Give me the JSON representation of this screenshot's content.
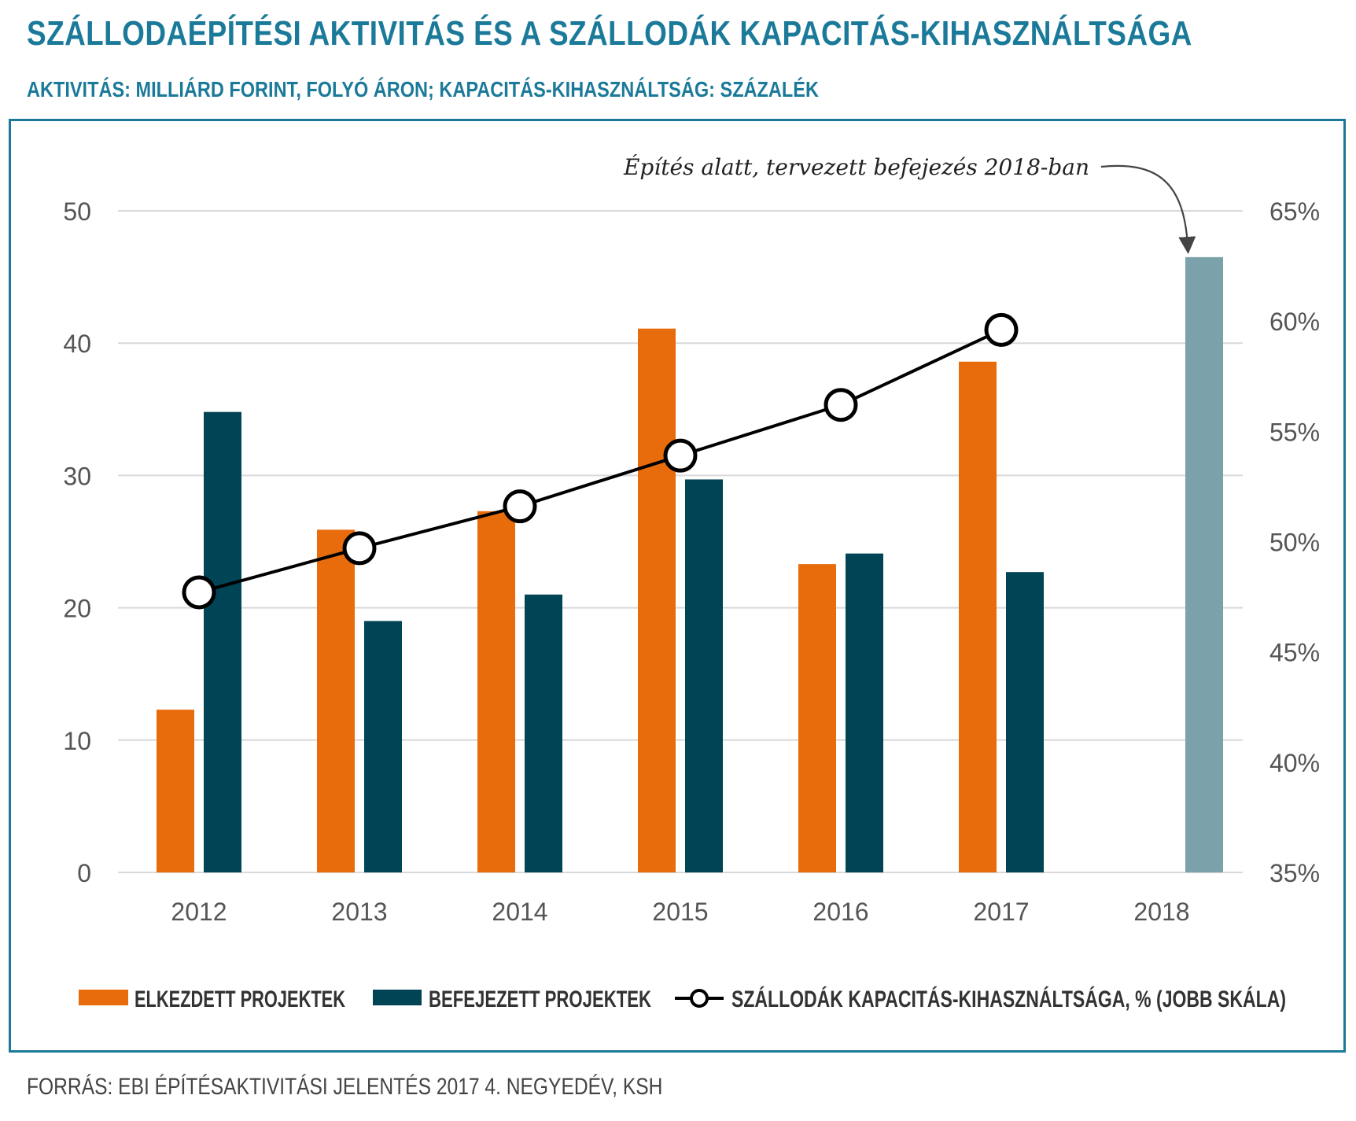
{
  "header": {
    "title": "SZÁLLODAÉPÍTÉSI AKTIVITÁS ÉS A SZÁLLODÁK KAPACITÁS-KIHASZNÁLTSÁGA",
    "subtitle": "AKTIVITÁS: MILLIÁRD FORINT, FOLYÓ ÁRON; KAPACITÁS-KIHASZNÁLTSÁG: SZÁZALÉK"
  },
  "footer": {
    "source": "FORRÁS: EBI ÉPÍTÉSAKTIVITÁSI JELENTÉS 2017 4. NEGYEDÉV, KSH"
  },
  "colors": {
    "started": "#e86c0c",
    "finished": "#004455",
    "planned": "#7ba2ab",
    "grid": "#d9d9d9",
    "line": "#000000"
  },
  "chart_data": {
    "type": "bar",
    "title": "SZÁLLODAÉPÍTÉSI AKTIVITÁS ÉS A SZÁLLODÁK KAPACITÁS-KIHASZNÁLTSÁGA",
    "categories": [
      "2012",
      "2013",
      "2014",
      "2015",
      "2016",
      "2017",
      "2018"
    ],
    "y_left": {
      "min": 0,
      "max": 50,
      "ticks": [
        "0",
        "10",
        "20",
        "30",
        "40",
        "50"
      ]
    },
    "y_right": {
      "min": 35,
      "max": 65,
      "ticks": [
        "35%",
        "40%",
        "45%",
        "50%",
        "55%",
        "60%",
        "65%"
      ]
    },
    "series": [
      {
        "name": "ELKEZDETT PROJEKTEK",
        "kind": "bar",
        "axis": "left",
        "values": [
          12.3,
          25.9,
          27.3,
          41.1,
          23.3,
          38.6,
          null
        ]
      },
      {
        "name": "BEFEJEZETT PROJEKTEK",
        "kind": "bar",
        "axis": "left",
        "values": [
          34.8,
          19.0,
          21.0,
          29.7,
          24.1,
          22.7,
          null
        ]
      },
      {
        "name": "SZÁLLODÁK KAPACITÁS-KIHASZNÁLTSÁGA, % (JOBB SKÁLA)",
        "kind": "line",
        "axis": "right",
        "values": [
          47.7,
          49.7,
          51.6,
          53.9,
          56.2,
          59.6,
          null
        ]
      },
      {
        "name": "Építés alatt, tervezett befejezés 2018-ban",
        "kind": "bar",
        "axis": "left",
        "values": [
          null,
          null,
          null,
          null,
          null,
          null,
          46.5
        ]
      }
    ],
    "annotation": "Építés alatt, tervezett befejezés 2018-ban",
    "legend": [
      "ELKEZDETT PROJEKTEK",
      "BEFEJEZETT PROJEKTEK",
      "SZÁLLODÁK KAPACITÁS-KIHASZNÁLTSÁGA, % (JOBB SKÁLA)"
    ]
  }
}
